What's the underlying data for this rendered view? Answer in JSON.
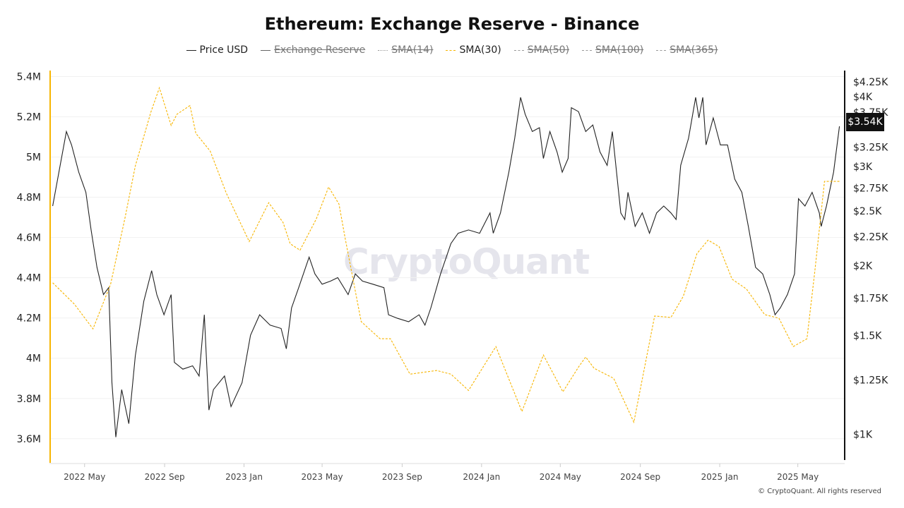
{
  "title": "Ethereum: Exchange Reserve - Binance",
  "watermark": "CryptoQuant",
  "footer": "© CryptoQuant. All rights reserved",
  "legend": [
    {
      "label": "Price USD",
      "active": true,
      "style": "solid",
      "color": "#222222"
    },
    {
      "label": "Exchange Reserve",
      "active": false,
      "style": "solid",
      "color": "#555555"
    },
    {
      "label": "SMA(14)",
      "active": false,
      "style": "dotted",
      "color": "#999999"
    },
    {
      "label": "SMA(30)",
      "active": true,
      "style": "dashed",
      "color": "#f7b500"
    },
    {
      "label": "SMA(50)",
      "active": false,
      "style": "dashed",
      "color": "#999999"
    },
    {
      "label": "SMA(100)",
      "active": false,
      "style": "dashed",
      "color": "#999999"
    },
    {
      "label": "SMA(365)",
      "active": false,
      "style": "dashed",
      "color": "#999999"
    }
  ],
  "current_price_label": "$3.54K",
  "chart_data": {
    "type": "line",
    "title": "Ethereum: Exchange Reserve - Binance",
    "x_ticks": [
      "2022 May",
      "2022 Sep",
      "2023 Jan",
      "2023 May",
      "2023 Sep",
      "2024 Jan",
      "2024 May",
      "2024 Sep",
      "2025 Jan",
      "2025 May"
    ],
    "x_tick_dates": [
      "2022-05-01",
      "2022-09-01",
      "2023-01-01",
      "2023-05-01",
      "2023-09-01",
      "2024-01-01",
      "2024-05-01",
      "2024-09-01",
      "2025-01-01",
      "2025-05-01"
    ],
    "x_range": [
      "2022-03-08",
      "2025-07-12"
    ],
    "left_axis": {
      "scale": "linear",
      "range": [
        3.48,
        5.43
      ],
      "ticks": [
        3.6,
        3.8,
        4.0,
        4.2,
        4.4,
        4.6,
        4.8,
        5.0,
        5.2,
        5.4
      ],
      "tick_labels": [
        "3.6M",
        "3.8M",
        "4M",
        "4.2M",
        "4.4M",
        "4.6M",
        "4.8M",
        "5M",
        "5.2M",
        "5.4M"
      ],
      "color": "#f7b500"
    },
    "right_axis": {
      "scale": "log",
      "range": [
        890,
        4450
      ],
      "ticks": [
        1000,
        1250,
        1500,
        1750,
        2000,
        2250,
        2500,
        2750,
        3000,
        3250,
        3750,
        4000,
        4250
      ],
      "tick_labels": [
        "$1K",
        "$1.25K",
        "$1.5K",
        "$1.75K",
        "$2K",
        "$2.25K",
        "$2.5K",
        "$2.75K",
        "$3K",
        "$3.25K",
        "$3.75K",
        "$4K",
        "$4.25K"
      ]
    },
    "grid": true,
    "legend_position": "top",
    "series": [
      {
        "name": "Price USD",
        "axis": "right",
        "color": "#222222",
        "x": [
          "2022-03-13",
          "2022-04-03",
          "2022-04-11",
          "2022-04-22",
          "2022-05-03",
          "2022-05-11",
          "2022-05-20",
          "2022-05-30",
          "2022-06-07",
          "2022-06-12",
          "2022-06-18",
          "2022-06-27",
          "2022-07-08",
          "2022-07-18",
          "2022-07-31",
          "2022-08-12",
          "2022-08-20",
          "2022-08-31",
          "2022-09-11",
          "2022-09-16",
          "2022-09-29",
          "2022-10-14",
          "2022-10-24",
          "2022-11-01",
          "2022-11-08",
          "2022-11-15",
          "2022-12-02",
          "2022-12-12",
          "2022-12-29",
          "2023-01-11",
          "2023-01-25",
          "2023-02-10",
          "2023-02-27",
          "2023-03-07",
          "2023-03-15",
          "2023-03-26",
          "2023-04-11",
          "2023-04-20",
          "2023-05-01",
          "2023-05-14",
          "2023-05-25",
          "2023-06-10",
          "2023-06-21",
          "2023-07-02",
          "2023-07-18",
          "2023-08-04",
          "2023-08-11",
          "2023-08-25",
          "2023-09-11",
          "2023-09-27",
          "2023-10-06",
          "2023-10-15",
          "2023-10-30",
          "2023-11-15",
          "2023-11-26",
          "2023-12-12",
          "2023-12-29",
          "2024-01-14",
          "2024-01-19",
          "2024-01-30",
          "2024-02-12",
          "2024-02-21",
          "2024-03-01",
          "2024-03-08",
          "2024-03-19",
          "2024-03-30",
          "2024-04-05",
          "2024-04-15",
          "2024-04-26",
          "2024-05-04",
          "2024-05-13",
          "2024-05-18",
          "2024-05-29",
          "2024-06-09",
          "2024-06-20",
          "2024-07-01",
          "2024-07-12",
          "2024-07-20",
          "2024-08-02",
          "2024-08-08",
          "2024-08-13",
          "2024-08-24",
          "2024-09-04",
          "2024-09-15",
          "2024-09-26",
          "2024-10-07",
          "2024-10-18",
          "2024-10-26",
          "2024-11-02",
          "2024-11-14",
          "2024-11-25",
          "2024-11-30",
          "2024-12-06",
          "2024-12-11",
          "2024-12-22",
          "2025-01-02",
          "2025-01-13",
          "2025-01-24",
          "2025-02-04",
          "2025-02-14",
          "2025-02-25",
          "2025-03-08",
          "2025-03-19",
          "2025-03-27",
          "2025-04-04",
          "2025-04-15",
          "2025-04-26",
          "2025-05-02",
          "2025-05-12",
          "2025-05-23",
          "2025-06-03",
          "2025-06-06",
          "2025-06-14",
          "2025-06-25",
          "2025-07-04"
        ],
        "values": [
          2553,
          3465,
          3280,
          2933,
          2700,
          2314,
          1985,
          1775,
          1826,
          1236,
          989,
          1202,
          1045,
          1381,
          1727,
          1958,
          1775,
          1634,
          1775,
          1344,
          1307,
          1325,
          1271,
          1634,
          1105,
          1202,
          1271,
          1121,
          1236,
          1502,
          1634,
          1566,
          1545,
          1421,
          1680,
          1826,
          2070,
          1932,
          1852,
          1876,
          1903,
          1775,
          1932,
          1876,
          1852,
          1826,
          1634,
          1610,
          1588,
          1634,
          1566,
          1680,
          1932,
          2189,
          2283,
          2314,
          2283,
          2481,
          2283,
          2481,
          2933,
          3370,
          3986,
          3720,
          3465,
          3520,
          3103,
          3465,
          3187,
          2933,
          3103,
          3820,
          3760,
          3465,
          3560,
          3187,
          3016,
          3465,
          2481,
          2415,
          2700,
          2348,
          2481,
          2283,
          2481,
          2553,
          2481,
          2415,
          3016,
          3370,
          3986,
          3664,
          3986,
          3280,
          3664,
          3280,
          3280,
          2851,
          2700,
          2348,
          1985,
          1932,
          1775,
          1634,
          1680,
          1775,
          1932,
          2631,
          2553,
          2700,
          2481,
          2348,
          2553,
          2933,
          3540
        ]
      },
      {
        "name": "SMA(30)",
        "axis": "left",
        "color": "#f7b500",
        "style": "dashed",
        "x": [
          "2022-03-13",
          "2022-04-15",
          "2022-05-14",
          "2022-06-10",
          "2022-07-02",
          "2022-07-18",
          "2022-08-11",
          "2022-08-24",
          "2022-09-11",
          "2022-09-20",
          "2022-10-10",
          "2022-10-19",
          "2022-11-10",
          "2022-12-05",
          "2023-01-09",
          "2023-02-08",
          "2023-03-02",
          "2023-03-13",
          "2023-03-28",
          "2023-04-22",
          "2023-05-11",
          "2023-05-27",
          "2023-06-05",
          "2023-06-30",
          "2023-07-29",
          "2023-08-14",
          "2023-09-13",
          "2023-10-24",
          "2023-11-15",
          "2023-12-12",
          "2024-01-23",
          "2024-03-03",
          "2024-04-05",
          "2024-05-05",
          "2024-05-29",
          "2024-06-09",
          "2024-06-22",
          "2024-07-22",
          "2024-08-22",
          "2024-09-23",
          "2024-10-18",
          "2024-11-06",
          "2024-11-27",
          "2024-12-14",
          "2024-12-31",
          "2025-01-20",
          "2025-02-11",
          "2025-03-11",
          "2025-04-02",
          "2025-04-24",
          "2025-05-15",
          "2025-05-27",
          "2025-06-11",
          "2025-07-04"
        ],
        "values": [
          4.375,
          4.27,
          4.146,
          4.368,
          4.696,
          4.956,
          5.224,
          5.344,
          5.157,
          5.213,
          5.256,
          5.118,
          5.03,
          4.819,
          4.58,
          4.773,
          4.675,
          4.569,
          4.537,
          4.692,
          4.851,
          4.766,
          4.604,
          4.182,
          4.097,
          4.097,
          3.921,
          3.939,
          3.921,
          3.84,
          4.058,
          3.735,
          4.016,
          3.833,
          3.956,
          4.006,
          3.95,
          3.9,
          3.682,
          4.21,
          4.203,
          4.308,
          4.52,
          4.587,
          4.555,
          4.393,
          4.344,
          4.217,
          4.199,
          4.058,
          4.097,
          4.428,
          4.879,
          4.879
        ]
      }
    ]
  }
}
